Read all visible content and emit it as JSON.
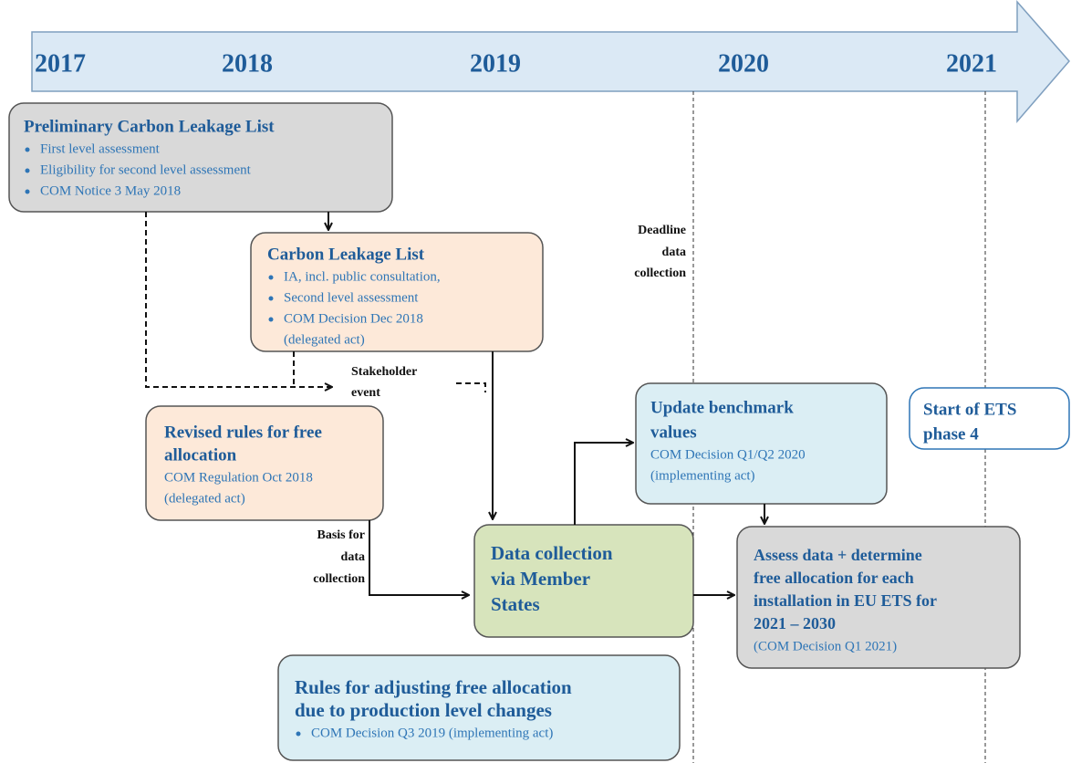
{
  "timeline": {
    "years": [
      "2017",
      "2018",
      "2019",
      "2020",
      "2021"
    ]
  },
  "boxes": [
    {
      "title": [
        "Preliminary Carbon Leakage List"
      ],
      "bullets": [
        "First level assessment",
        "Eligibility for second level assessment",
        "COM Notice 3 May 2018"
      ],
      "notes": []
    },
    {
      "title": [
        "Carbon Leakage List"
      ],
      "bullets": [
        "IA, incl. public consultation,",
        "Second level assessment",
        "COM Decision Dec 2018"
      ],
      "notes": [
        "(delegated act)"
      ]
    },
    {
      "title": [
        "Revised rules for free",
        "allocation"
      ],
      "bullets": [],
      "notes": [
        "COM Regulation Oct 2018",
        "(delegated act)"
      ]
    },
    {
      "title": [
        "Data collection",
        "via Member",
        "States"
      ],
      "bullets": [],
      "notes": []
    },
    {
      "title": [
        "Update   benchmark",
        "values"
      ],
      "bullets": [],
      "notes": [
        "COM Decision Q1/Q2 2020",
        "(implementing act)"
      ]
    },
    {
      "title": [
        "Start of ETS",
        "phase 4"
      ],
      "bullets": [],
      "notes": []
    },
    {
      "title": [
        "Assess data + determine",
        "free allocation for each",
        "installation in EU ETS for",
        "2021 – 2030"
      ],
      "bullets": [],
      "notes": [
        "(COM Decision Q1 2021)"
      ]
    },
    {
      "title": [
        "Rules for adjusting free allocation",
        "due to production level changes"
      ],
      "bullets": [
        "COM Decision Q3 2019 (implementing act)"
      ],
      "notes": []
    }
  ],
  "labels": {
    "deadline": [
      "Deadline",
      "data",
      "collection"
    ],
    "stakeholder": [
      "Stakeholder",
      "event"
    ],
    "basis": [
      "Basis for",
      "data",
      "collection"
    ]
  }
}
